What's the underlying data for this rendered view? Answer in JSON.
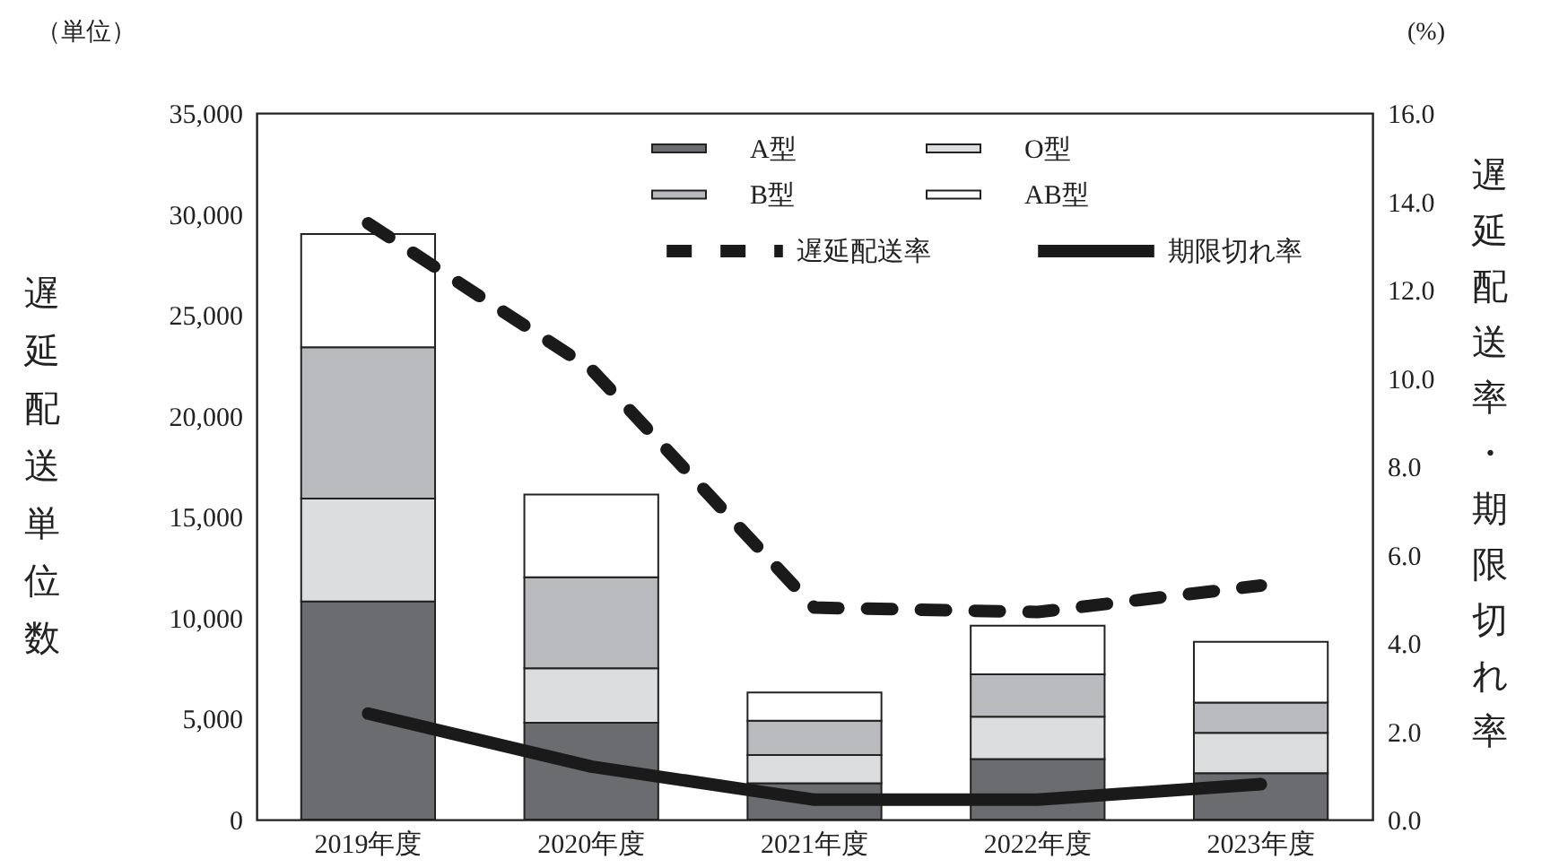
{
  "chart_data": {
    "type": "bar",
    "stacked": true,
    "ylabel": "遅延配送単位数",
    "y2label": "遅延配送率・期限切れ率",
    "annotations": [
      "（単位）",
      "(%)"
    ],
    "categories": [
      "2019年度",
      "2020年度",
      "2021年度",
      "2022年度",
      "2023年度"
    ],
    "series": [
      {
        "name": "A型",
        "color": "#6b6c70",
        "values": [
          10800,
          4800,
          1800,
          3000,
          2300
        ]
      },
      {
        "name": "O型",
        "color": "#dcdddf",
        "values": [
          5100,
          2700,
          1400,
          2100,
          2000
        ]
      },
      {
        "name": "B型",
        "color": "#b9babd",
        "values": [
          7500,
          4500,
          1700,
          2100,
          1500
        ]
      },
      {
        "name": "AB型",
        "color": "#ffffff",
        "values": [
          5600,
          4100,
          1400,
          2400,
          3000
        ]
      },
      {
        "name": "遅延配送率",
        "type": "line",
        "axis": "y2",
        "line_style": "dashed",
        "color": "#1a1a1a",
        "values": [
          13.5,
          10.2,
          4.8,
          4.7,
          5.3
        ]
      },
      {
        "name": "期限切れ率",
        "type": "line",
        "axis": "y2",
        "line_style": "solid",
        "color": "#1a1a1a",
        "values": [
          2.4,
          1.2,
          0.45,
          0.45,
          0.8
        ]
      }
    ],
    "ylim": [
      0,
      35000
    ],
    "yticks": [
      {
        "value": 0,
        "label": "0"
      },
      {
        "value": 5000,
        "label": "5,000"
      },
      {
        "value": 10000,
        "label": "10,000"
      },
      {
        "value": 15000,
        "label": "15,000"
      },
      {
        "value": 20000,
        "label": "20,000"
      },
      {
        "value": 25000,
        "label": "25,000"
      },
      {
        "value": 30000,
        "label": "30,000"
      },
      {
        "value": 35000,
        "label": "35,000"
      }
    ],
    "y2lim": [
      0,
      16
    ],
    "y2ticks": [
      {
        "value": 0,
        "label": "0.0"
      },
      {
        "value": 2,
        "label": "2.0"
      },
      {
        "value": 4,
        "label": "4.0"
      },
      {
        "value": 6,
        "label": "6.0"
      },
      {
        "value": 8,
        "label": "8.0"
      },
      {
        "value": 10,
        "label": "10.0"
      },
      {
        "value": 12,
        "label": "12.0"
      },
      {
        "value": 14,
        "label": "14.0"
      },
      {
        "value": 16,
        "label": "16.0"
      }
    ],
    "grid": false,
    "legend": "top right"
  }
}
